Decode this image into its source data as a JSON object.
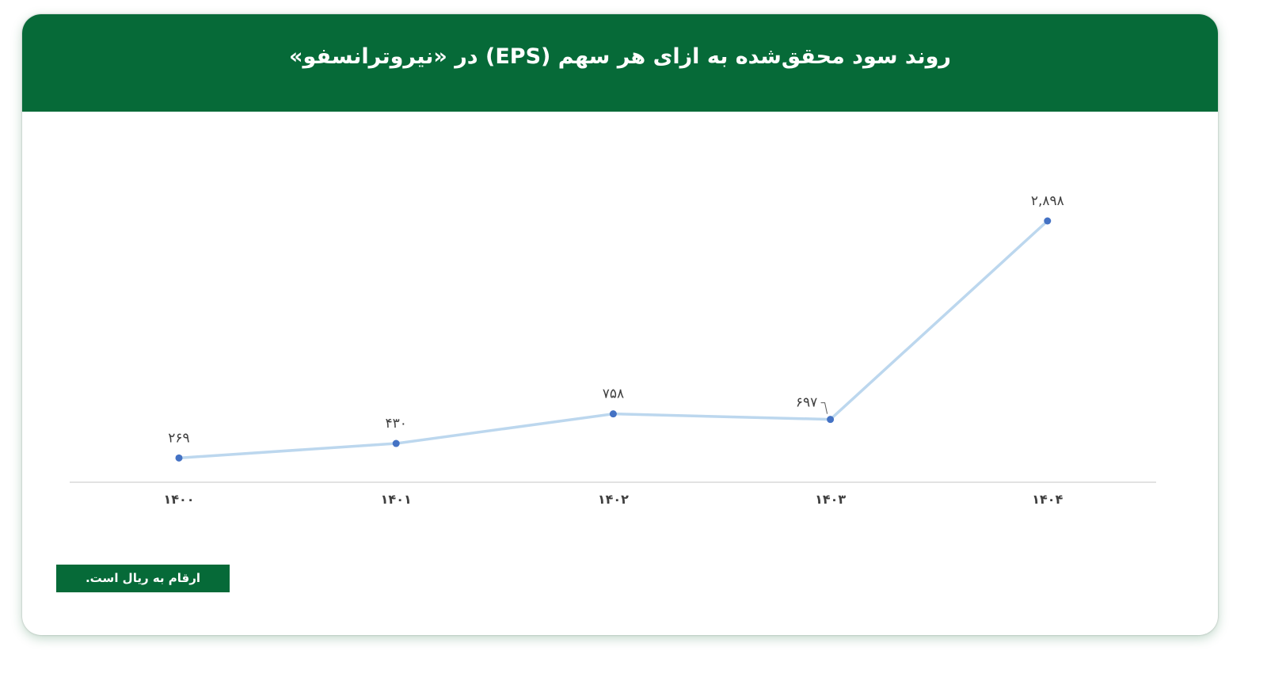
{
  "title": "روند سود محقق‌شده به ازای هر سهم (EPS) در «نیروترانسفو»",
  "note": "ارقام به ریال است.",
  "colors": {
    "header": "#066a38",
    "line": "#bcd7ee",
    "marker": "#4472c4",
    "axis": "#d9d9d9",
    "label": "#404040"
  },
  "chart_data": {
    "type": "line",
    "categories": [
      "۱۴۰۰",
      "۱۴۰۱",
      "۱۴۰۲",
      "۱۴۰۳",
      "۱۴۰۴"
    ],
    "values": [
      269,
      430,
      758,
      697,
      2898
    ],
    "data_labels": [
      "۲۶۹",
      "۴۳۰",
      "۷۵۸",
      "۶۹۷",
      "۲,۸۹۸"
    ],
    "ylim": [
      0,
      2898
    ],
    "grid": false,
    "legend": "none"
  }
}
